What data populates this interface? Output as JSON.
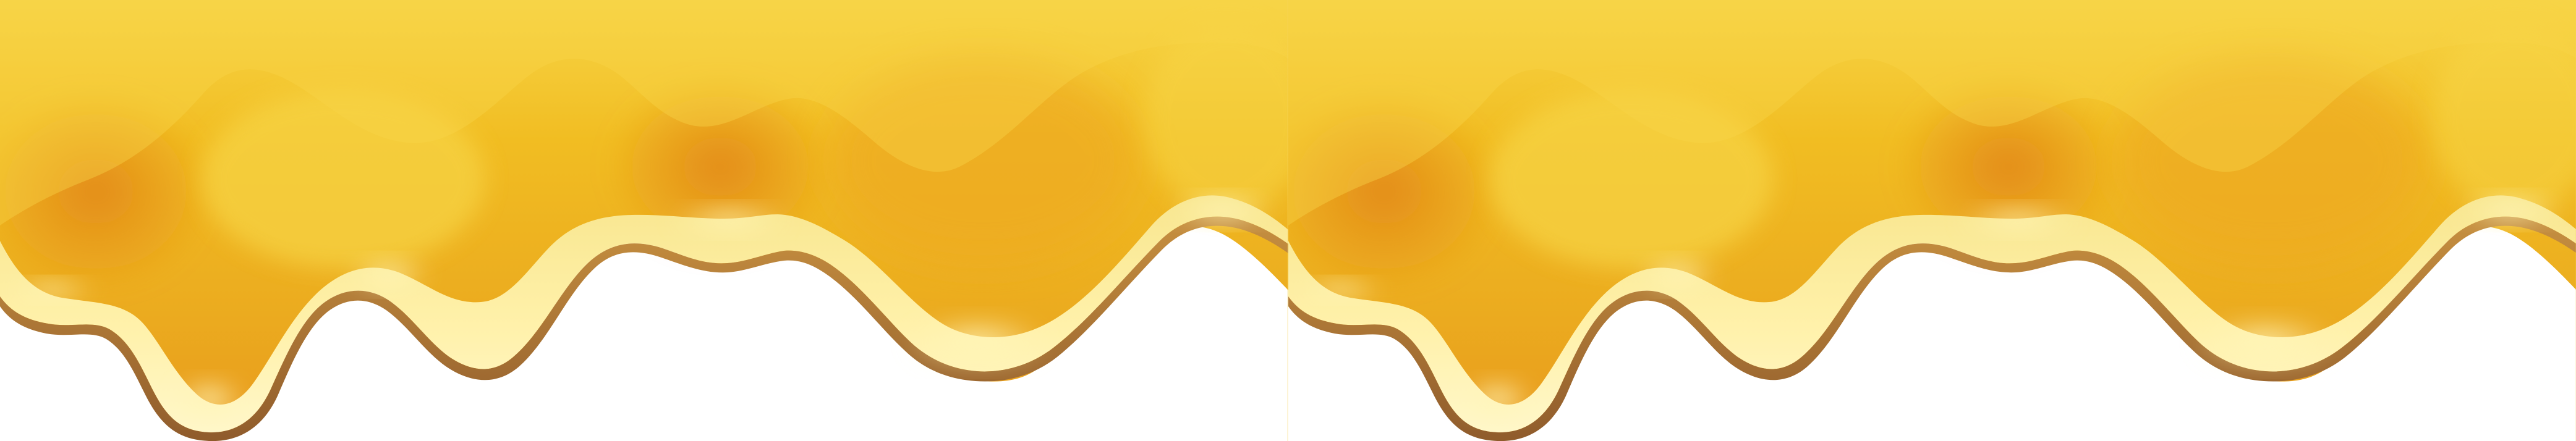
{
  "artwork": {
    "subject": "dripping-honey-border",
    "repeat_count": 2,
    "colors": {
      "honey_light": "#f7d547",
      "honey_mid": "#f1bd22",
      "honey_deep": "#e99a1d",
      "honey_orange": "#e38a18",
      "drip_highlight": "#fff5b8",
      "drip_cream": "#f8e68f",
      "drip_edge": "#b67a34",
      "drip_edge_dark": "#8f5b2b",
      "background": "#ffffff"
    }
  }
}
